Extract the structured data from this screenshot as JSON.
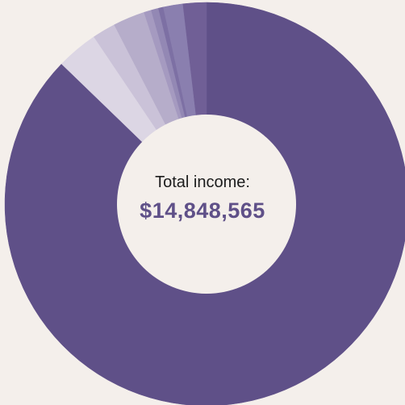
{
  "center": {
    "label": "Total income:",
    "value": "$14,848,565"
  },
  "colors": {
    "background": "#f4efeb",
    "hole": "#f4efeb",
    "value_text": "#5f5088"
  },
  "chart_data": {
    "type": "pie",
    "donut": true,
    "total": 14848565,
    "slices": [
      {
        "share": 0.888,
        "color": "#5f5088"
      },
      {
        "share": 0.034,
        "color": "#dcd6e4"
      },
      {
        "share": 0.019,
        "color": "#cac2d8"
      },
      {
        "share": 0.026,
        "color": "#b6adca"
      },
      {
        "share": 0.006,
        "color": "#a59ac0"
      },
      {
        "share": 0.006,
        "color": "#9388b4"
      },
      {
        "share": 0.004,
        "color": "#7d70a4"
      },
      {
        "share": 0.016,
        "color": "#8a7faf"
      },
      {
        "share": 0.019,
        "color": "#705f96"
      }
    ]
  }
}
